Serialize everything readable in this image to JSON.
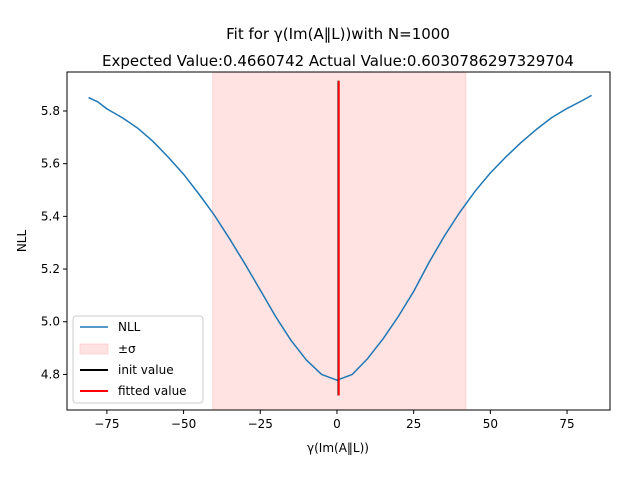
{
  "chart_data": {
    "type": "line",
    "title_line1": "Fit for γ(Im(A‖L))with N=1000",
    "title_line2": "Expected Value:0.4660742 Actual Value:0.6030786297329704",
    "xlabel": "γ(Im(A‖L))",
    "ylabel": "NLL",
    "xlim": [
      -88,
      89
    ],
    "ylim": [
      4.665,
      5.948
    ],
    "xticks": [
      -75,
      -50,
      -25,
      0,
      25,
      50,
      75
    ],
    "xtick_labels": [
      "−75",
      "−50",
      "−25",
      "0",
      "25",
      "50",
      "75"
    ],
    "yticks": [
      4.8,
      5.0,
      5.2,
      5.4,
      5.6,
      5.8
    ],
    "ytick_labels": [
      "4.8",
      "5.0",
      "5.2",
      "5.4",
      "5.6",
      "5.8"
    ],
    "grid": false,
    "legend_position": "lower-left",
    "series": [
      {
        "name": "NLL",
        "color": "#1f77b4",
        "x": [
          -81,
          -78,
          -75,
          -70,
          -65,
          -60,
          -55,
          -50,
          -45,
          -40,
          -35,
          -30,
          -25,
          -20,
          -15,
          -10,
          -5,
          0,
          5,
          10,
          15,
          20,
          25,
          30,
          35,
          40,
          45,
          50,
          55,
          60,
          65,
          70,
          75,
          80,
          83
        ],
        "y": [
          5.851,
          5.835,
          5.808,
          5.775,
          5.735,
          5.685,
          5.625,
          5.56,
          5.485,
          5.405,
          5.315,
          5.22,
          5.12,
          5.02,
          4.93,
          4.855,
          4.8,
          4.778,
          4.8,
          4.86,
          4.935,
          5.02,
          5.115,
          5.225,
          5.325,
          5.415,
          5.495,
          5.565,
          5.625,
          5.68,
          5.73,
          5.775,
          5.81,
          5.84,
          5.859
        ]
      }
    ],
    "band": {
      "name": "±σ",
      "x_from": -40.5,
      "x_to": 42,
      "color": "#ffc0c0"
    },
    "init_value": {
      "name": "init value",
      "x": 0.4660742,
      "y_from": 4.72,
      "y_to": 5.915,
      "color": "#000000"
    },
    "fitted_value": {
      "name": "fitted value",
      "x": 0.6030786297329704,
      "y_from": 4.72,
      "y_to": 5.915,
      "color": "#ff0000"
    }
  }
}
